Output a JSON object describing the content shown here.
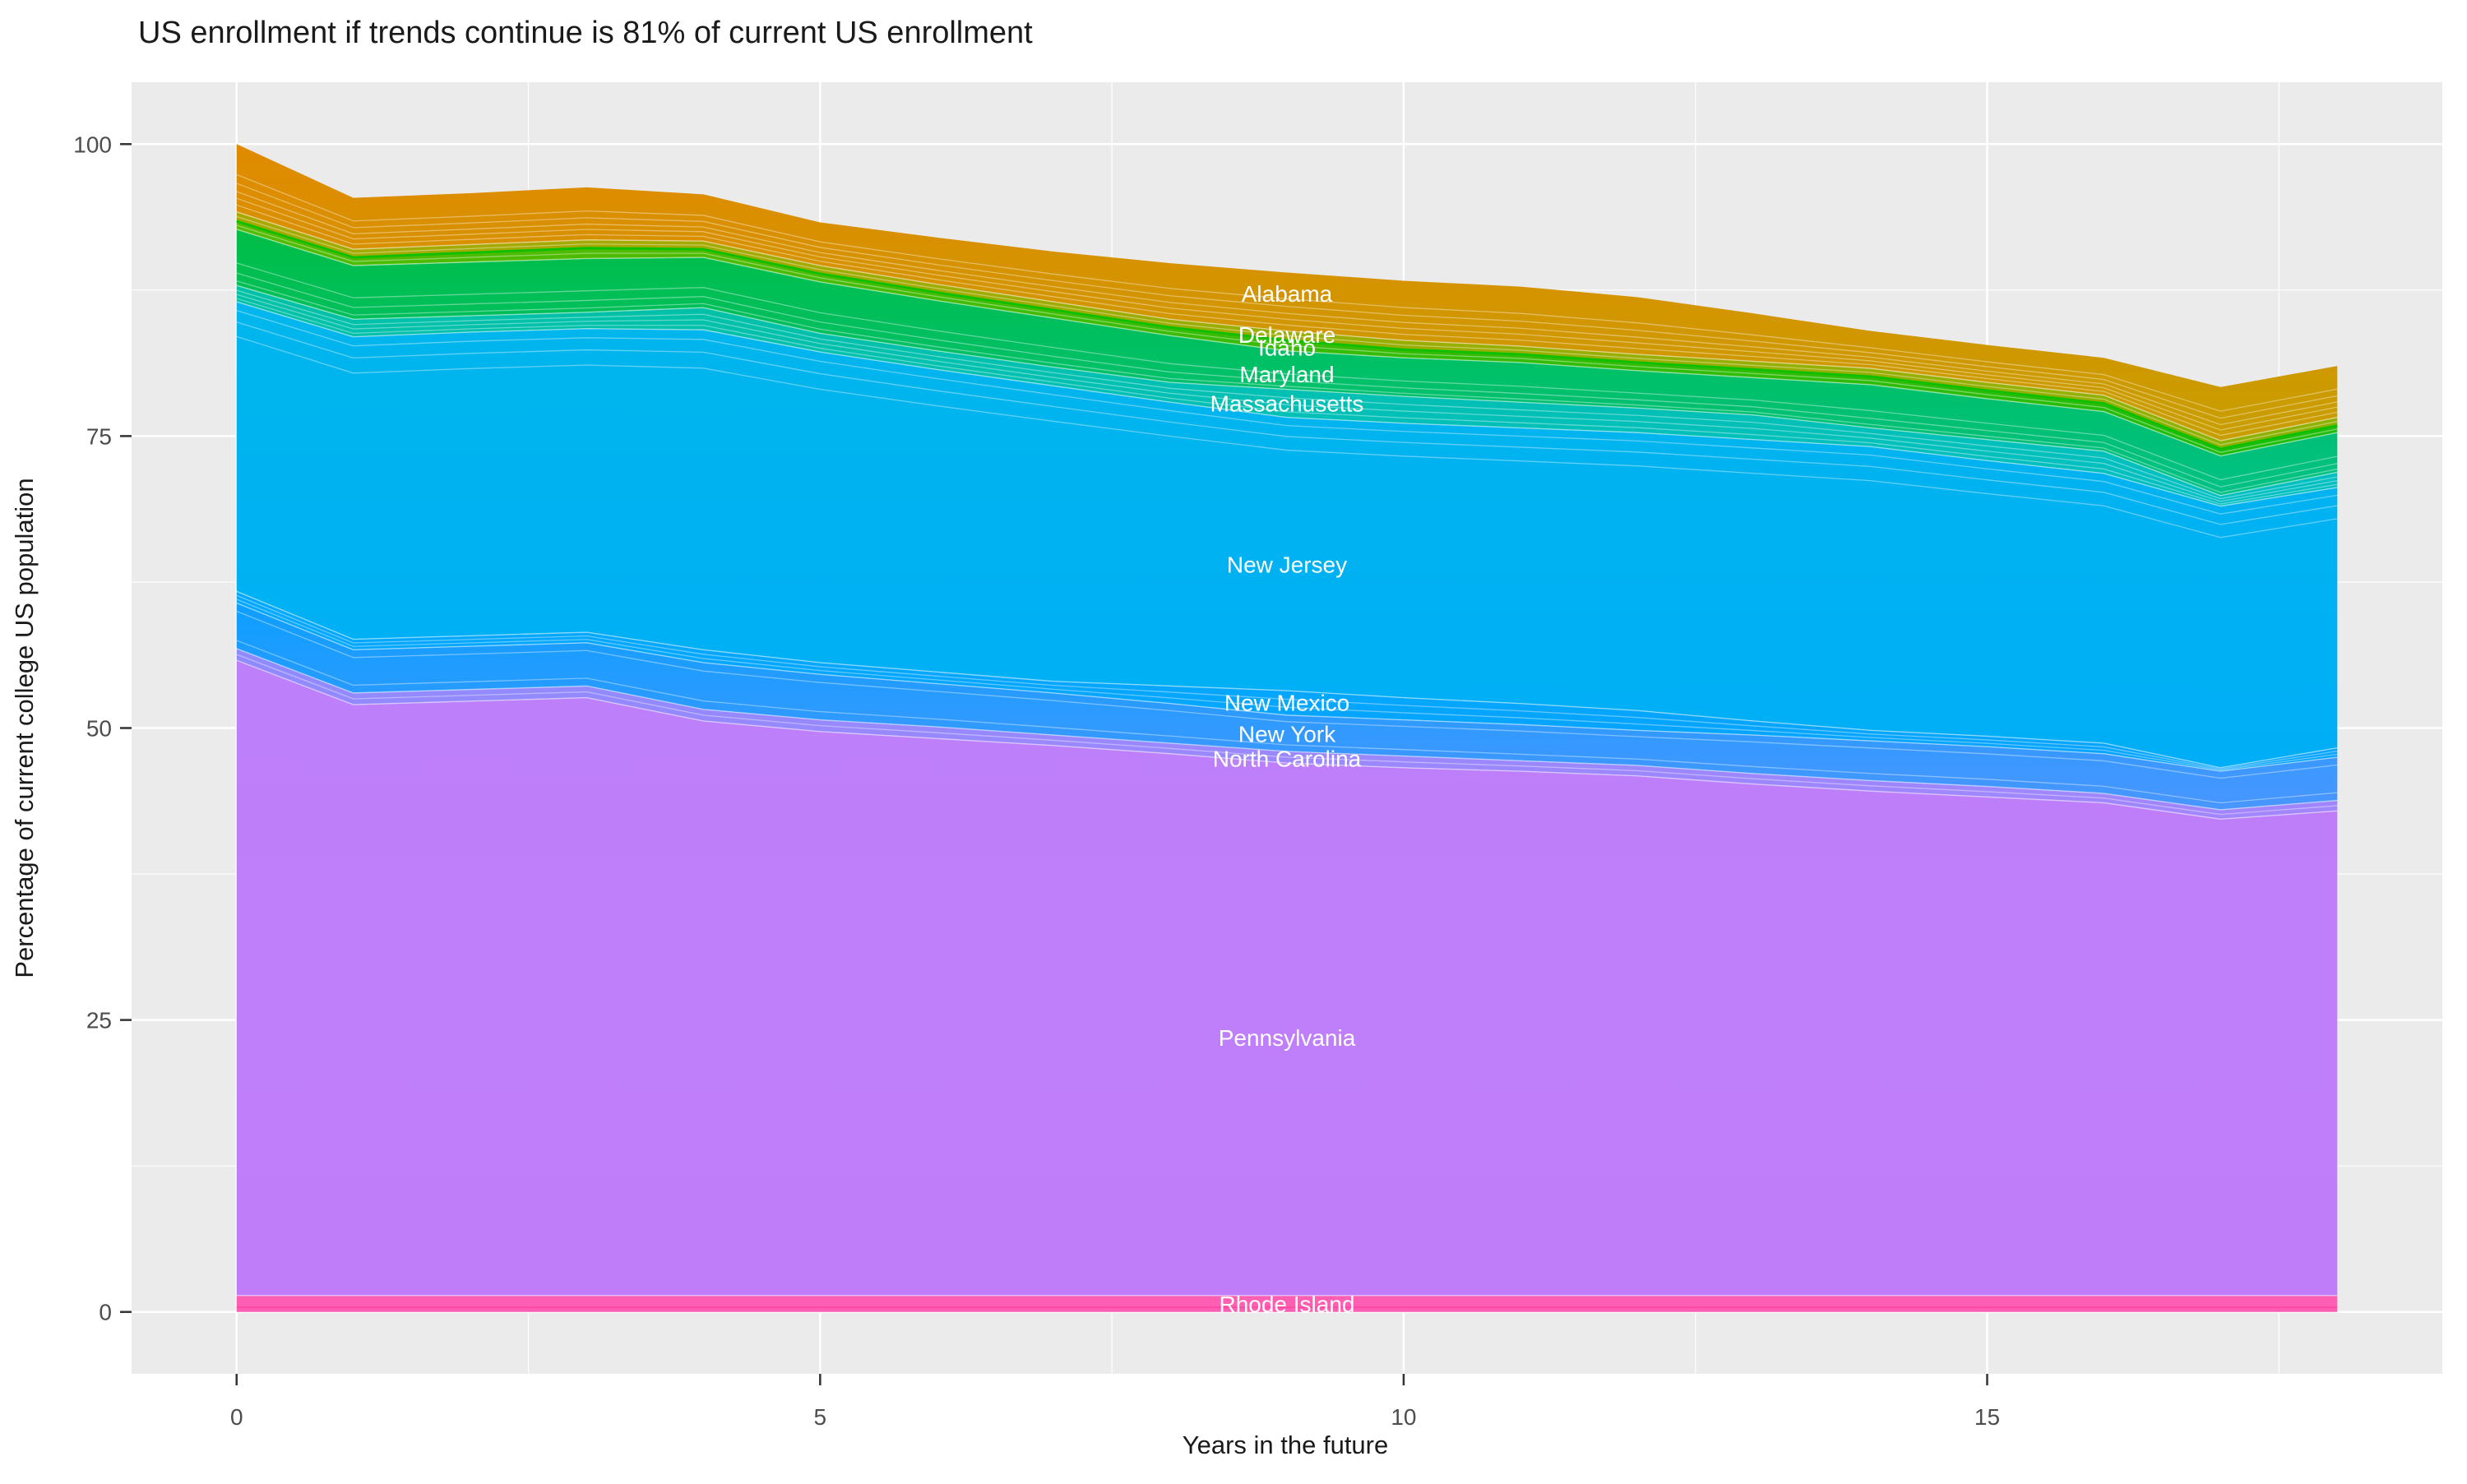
{
  "title": "US enrollment if trends continue is 81% of current US enrollment",
  "chart_data": {
    "type": "area",
    "stacked": true,
    "title": "US enrollment if trends continue is 81% of current US enrollment",
    "xlabel": "Years in the future",
    "ylabel": "Percentage of current college US population",
    "legend_position": "none",
    "grid": true,
    "panel_bg": "#EBEBEB",
    "grid_color": "#FFFFFF",
    "tick_label_color": "#4D4D4D",
    "title_color": "#1A1A1A",
    "label_text_color": "#FFFFFF",
    "x": [
      0,
      1,
      2,
      3,
      4,
      5,
      6,
      7,
      8,
      9,
      10,
      11,
      12,
      13,
      14,
      15,
      16,
      17,
      18
    ],
    "x_ticks": [
      0,
      5,
      10,
      15
    ],
    "y_ticks": [
      0,
      25,
      50,
      75,
      100
    ],
    "x_minor_ticks": [
      2.5,
      7.5,
      12.5,
      17.5
    ],
    "y_minor_ticks": [
      12.5,
      37.5,
      62.5,
      87.5
    ],
    "xlim": [
      -0.9,
      18.9
    ],
    "ylim": [
      -5.3,
      105.3
    ],
    "label_x": 9,
    "series_note": "values are cumulative stack tops (percent of current US college population), listed bottom of stack to top; label_value is the y-position of the white state label at x=9",
    "series": [
      {
        "name": "Rhode Island",
        "color": "#FF5FB2",
        "color2": "#FF5FB2",
        "label_value": 0.7,
        "cumulative_top": [
          1.4,
          1.4,
          1.4,
          1.4,
          1.4,
          1.4,
          1.4,
          1.4,
          1.4,
          1.4,
          1.4,
          1.4,
          1.4,
          1.4,
          1.4,
          1.4,
          1.4,
          1.4,
          1.4
        ],
        "texture": [
          0.72
        ],
        "texture_color": "#FF3D9C"
      },
      {
        "name": "Pennsylvania",
        "color": "#BE7FFB",
        "color2": "#C07DF9",
        "label_value": 23.5,
        "cumulative_top": [
          55.8,
          52.0,
          52.3,
          52.6,
          50.6,
          49.7,
          49.1,
          48.5,
          47.8,
          47.0,
          46.6,
          46.3,
          45.9,
          45.2,
          44.6,
          44.1,
          43.6,
          42.2,
          42.9
        ],
        "texture": []
      },
      {
        "name": "North Carolina",
        "color": "#8E8BFF",
        "color2": "#A286FE",
        "label_value": 47.4,
        "cumulative_top": [
          56.8,
          53.0,
          53.3,
          53.6,
          51.6,
          50.7,
          50.1,
          49.4,
          48.7,
          48.0,
          47.6,
          47.2,
          46.8,
          46.1,
          45.5,
          45.0,
          44.4,
          43.0,
          43.8
        ],
        "texture": [
          0.5
        ]
      },
      {
        "name": "New York",
        "color": "#0D9FFF",
        "color2": "#4996FF",
        "label_value": 49.5,
        "cumulative_top": [
          60.7,
          56.7,
          57.0,
          57.3,
          55.6,
          54.6,
          53.8,
          53.0,
          52.1,
          51.1,
          50.7,
          50.3,
          49.8,
          49.4,
          48.9,
          48.4,
          47.8,
          46.3,
          47.5
        ],
        "texture": [
          0.18,
          0.82
        ]
      },
      {
        "name": "New Mexico",
        "color": "#03A8FE",
        "color2": "#06A4FF",
        "label_value": 52.2,
        "cumulative_top": [
          61.7,
          57.6,
          57.9,
          58.2,
          56.7,
          55.6,
          54.8,
          54.0,
          53.6,
          53.2,
          52.6,
          52.1,
          51.5,
          50.6,
          49.8,
          49.3,
          48.7,
          46.6,
          48.3
        ],
        "texture": [
          0.35,
          0.68
        ]
      },
      {
        "name": "New Jersey",
        "color": "#00B6EC",
        "color2": "#00AEF7",
        "label_value": 64.0,
        "cumulative_top": [
          86.5,
          83.5,
          83.9,
          84.2,
          84.1,
          82.2,
          80.7,
          79.3,
          77.9,
          76.6,
          76.1,
          75.7,
          75.3,
          74.7,
          74.1,
          72.9,
          71.8,
          69.0,
          70.6
        ],
        "texture": [
          0.03,
          0.07,
          0.12
        ]
      },
      {
        "name": "Massachusetts",
        "color": "#00C1A4",
        "color2": "#00BFC4",
        "label_value": 77.8,
        "cumulative_top": [
          87.9,
          85.0,
          85.3,
          85.6,
          86.0,
          83.8,
          82.3,
          80.9,
          79.6,
          79.0,
          78.4,
          77.9,
          77.4,
          76.8,
          75.7,
          74.7,
          73.7,
          69.9,
          71.9
        ],
        "texture": [
          0.3,
          0.55,
          0.8
        ]
      },
      {
        "name": "Maryland",
        "color": "#00BE46",
        "color2": "#00C185",
        "label_value": 80.3,
        "cumulative_top": [
          92.7,
          89.6,
          89.9,
          90.2,
          90.3,
          88.2,
          86.6,
          85.1,
          83.6,
          82.3,
          81.7,
          81.3,
          80.6,
          80.0,
          79.4,
          78.2,
          77.1,
          73.3,
          75.3
        ],
        "texture": [
          0.6,
          0.78,
          0.92
        ]
      },
      {
        "name": "Idaho",
        "color": "#57BB00",
        "color2": "#1CBD0D",
        "label_value": 82.6,
        "cumulative_top": [
          93.4,
          90.3,
          90.7,
          91.1,
          91.0,
          88.9,
          87.3,
          85.8,
          84.3,
          83.2,
          82.4,
          82.0,
          81.3,
          80.7,
          80.1,
          78.9,
          77.8,
          73.9,
          75.9
        ],
        "texture": [
          0.5
        ],
        "top_stroke": {
          "color": "#10C000",
          "width": 3
        }
      },
      {
        "name": "Delaware",
        "color": "#A9A900",
        "color2": "#8DB200",
        "label_value": 83.7,
        "cumulative_top": [
          94.2,
          91.0,
          91.4,
          91.8,
          91.7,
          89.6,
          88.0,
          86.5,
          85.0,
          84.0,
          83.2,
          82.7,
          82.0,
          81.4,
          80.8,
          79.6,
          78.5,
          74.6,
          76.6
        ],
        "texture": [
          0.5
        ]
      },
      {
        "name": "Alabama",
        "color": "#E08A00",
        "color2": "#C89E00",
        "label_value": 87.2,
        "cumulative_top": [
          100,
          95.4,
          95.8,
          96.3,
          95.7,
          93.3,
          92.0,
          90.8,
          89.8,
          89.0,
          88.3,
          87.8,
          86.9,
          85.5,
          84.0,
          82.8,
          81.7,
          79.2,
          81.0
        ],
        "texture": [
          0.45,
          0.58,
          0.7,
          0.8,
          0.9
        ]
      }
    ]
  },
  "axis": {
    "x_tick_labels": [
      "0",
      "5",
      "10",
      "15"
    ],
    "y_tick_labels": [
      "0",
      "25",
      "50",
      "75",
      "100"
    ]
  }
}
